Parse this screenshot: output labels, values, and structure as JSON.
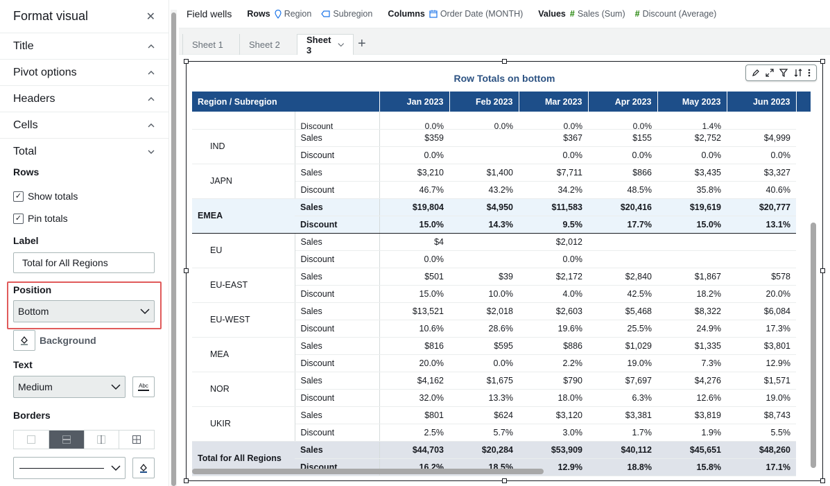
{
  "panel": {
    "title": "Format visual",
    "sections": [
      {
        "label": "Title",
        "chevron": "up"
      },
      {
        "label": "Pivot options",
        "chevron": "up"
      },
      {
        "label": "Headers",
        "chevron": "up"
      },
      {
        "label": "Cells",
        "chevron": "up"
      },
      {
        "label": "Total",
        "chevron": "down"
      }
    ],
    "rows_label": "Rows",
    "show_totals": "Show totals",
    "pin_totals": "Pin totals",
    "label_heading": "Label",
    "label_value": "Total for All Regions",
    "position_heading": "Position",
    "position_value": "Bottom",
    "background_label": "Background",
    "text_heading": "Text",
    "text_value": "Medium",
    "text_icon_label": "Abc",
    "borders_heading": "Borders"
  },
  "field_wells": {
    "title": "Field wells",
    "rows_label": "Rows",
    "rows": [
      "Region",
      "Subregion"
    ],
    "columns_label": "Columns",
    "columns": [
      "Order Date (MONTH)"
    ],
    "values_label": "Values",
    "values": [
      "Sales (Sum)",
      "Discount (Average)"
    ]
  },
  "sheets": {
    "tabs": [
      "Sheet 1",
      "Sheet 2",
      "Sheet 3"
    ],
    "active": "Sheet 3"
  },
  "visual": {
    "title": "Row Totals on bottom",
    "header_first": "Region / Subregion",
    "months": [
      "Jan 2023",
      "Feb 2023",
      "Mar 2023",
      "Apr 2023",
      "May 2023",
      "Jun 2023"
    ],
    "partial_row": {
      "metric": "Discount",
      "values": [
        "0.0%",
        "0.0%",
        "0.0%",
        "0.0%",
        "1.4%",
        ""
      ]
    },
    "apac_subregions": [
      {
        "name": "IND",
        "sales": [
          "$359",
          "",
          "$367",
          "$155",
          "$2,752",
          "$4,999"
        ],
        "discount": [
          "0.0%",
          "",
          "0.0%",
          "0.0%",
          "0.0%",
          "0.0%"
        ]
      },
      {
        "name": "JAPN",
        "sales": [
          "$3,210",
          "$1,400",
          "$7,711",
          "$866",
          "$3,435",
          "$3,327"
        ],
        "discount": [
          "46.7%",
          "43.2%",
          "34.2%",
          "48.5%",
          "35.8%",
          "40.6%"
        ]
      }
    ],
    "emea": {
      "name": "EMEA",
      "sales": [
        "$19,804",
        "$4,950",
        "$11,583",
        "$20,416",
        "$19,619",
        "$20,777"
      ],
      "discount": [
        "15.0%",
        "14.3%",
        "9.5%",
        "17.7%",
        "15.0%",
        "13.1%"
      ]
    },
    "emea_subregions": [
      {
        "name": "EU",
        "sales": [
          "$4",
          "",
          "$2,012",
          "",
          "",
          ""
        ],
        "discount": [
          "0.0%",
          "",
          "0.0%",
          "",
          "",
          ""
        ]
      },
      {
        "name": "EU-EAST",
        "sales": [
          "$501",
          "$39",
          "$2,172",
          "$2,840",
          "$1,867",
          "$578"
        ],
        "discount": [
          "15.0%",
          "10.0%",
          "4.0%",
          "42.5%",
          "18.2%",
          "20.0%"
        ]
      },
      {
        "name": "EU-WEST",
        "sales": [
          "$13,521",
          "$2,018",
          "$2,603",
          "$5,468",
          "$8,322",
          "$6,084"
        ],
        "discount": [
          "10.6%",
          "28.6%",
          "19.6%",
          "25.5%",
          "24.9%",
          "17.3%"
        ]
      },
      {
        "name": "MEA",
        "sales": [
          "$816",
          "$595",
          "$886",
          "$1,029",
          "$1,335",
          "$3,801"
        ],
        "discount": [
          "20.0%",
          "0.0%",
          "2.2%",
          "19.0%",
          "7.3%",
          "12.9%"
        ]
      },
      {
        "name": "NOR",
        "sales": [
          "$4,162",
          "$1,675",
          "$790",
          "$7,697",
          "$4,276",
          "$1,571"
        ],
        "discount": [
          "32.0%",
          "13.3%",
          "18.0%",
          "6.3%",
          "12.6%",
          "19.0%"
        ]
      },
      {
        "name": "UKIR",
        "sales": [
          "$801",
          "$624",
          "$3,120",
          "$3,381",
          "$3,819",
          "$8,743"
        ],
        "discount": [
          "2.5%",
          "5.7%",
          "3.0%",
          "1.7%",
          "1.9%",
          "5.5%"
        ]
      }
    ],
    "total": {
      "name": "Total for All Regions",
      "sales": [
        "$44,703",
        "$20,284",
        "$53,909",
        "$40,112",
        "$45,651",
        "$48,260"
      ],
      "discount": [
        "16.2%",
        "18.5%",
        "12.9%",
        "18.8%",
        "15.8%",
        "17.1%"
      ]
    },
    "metric_sales": "Sales",
    "metric_discount": "Discount"
  },
  "colors": {
    "header_bg": "#1d4e89",
    "group_bg": "#ebf4fb",
    "total_bg": "#dfe3ea",
    "title_color": "#2c5282",
    "highlight_border": "#e05a5a"
  }
}
